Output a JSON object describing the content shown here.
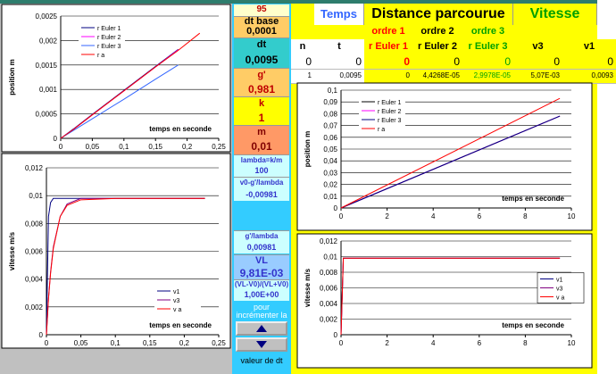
{
  "sidebar": {
    "count": "95",
    "params": [
      {
        "label": "dt base",
        "value": "0,0001"
      },
      {
        "label": "dt",
        "value": "0,0095"
      },
      {
        "label": "g'",
        "value": "0,981"
      },
      {
        "label": "k",
        "value": "1"
      },
      {
        "label": "m",
        "value": "0,01"
      },
      {
        "label": "lambda=k/m",
        "value": "100"
      },
      {
        "label": "v0-g'/lambda",
        "value": "-0,00981"
      },
      {
        "label": "g'/lambda",
        "value": "0,00981"
      },
      {
        "label": "VL",
        "value": "9,81E-03"
      },
      {
        "label": "(VL-V0)/(VL+V0)",
        "value": "1,00E+00"
      }
    ],
    "increment_note": "pour incrémenter la",
    "increment_target": "valeur de dt"
  },
  "table": {
    "group_headers": [
      "Temps",
      "Distance parcourue",
      "Vitesse"
    ],
    "sub_headers": [
      "ordre 1",
      "ordre 2",
      "ordre 3"
    ],
    "columns": [
      "n",
      "t",
      "r Euler 1",
      "r Euler 2",
      "r Euler 3",
      "v3",
      "v1"
    ],
    "rows": [
      [
        "0",
        "0",
        "0",
        "0",
        "0",
        "0",
        "0"
      ],
      [
        "1",
        "0,0095",
        "0",
        "4,4268E-05",
        "2,9978E-05",
        "5,07E-03",
        "0,0093"
      ]
    ]
  },
  "chart_data": [
    {
      "type": "line",
      "y_label": "position m",
      "x_label": "temps en seconde",
      "x": [
        0,
        0.02,
        0.05,
        0.1,
        0.15,
        0.186,
        0.22
      ],
      "series": [
        {
          "name": "r Euler 1",
          "color": "#000080",
          "values": [
            0,
            0.00019,
            0.00049,
            0.00098,
            0.00147,
            0.00182,
            null
          ]
        },
        {
          "name": "r Euler 2",
          "color": "#ff00ff",
          "values": [
            0,
            0.00018,
            0.00048,
            0.00097,
            0.00146,
            0.00181,
            null
          ]
        },
        {
          "name": "r Euler 3",
          "color": "#3366ff",
          "values": [
            0,
            0.00016,
            0.0004,
            0.0008,
            0.00121,
            0.0015,
            null
          ]
        },
        {
          "name": "r a",
          "color": "#ff0000",
          "values": [
            0,
            0.00018,
            0.00048,
            0.00097,
            0.00146,
            0.0018,
            0.00215
          ]
        }
      ],
      "xlim": [
        0,
        0.25
      ],
      "ylim": [
        0,
        0.0025
      ],
      "xticks": [
        0,
        {
          "value": 0.05,
          "label": "0,05"
        },
        {
          "value": 0.1,
          "label": "0,1"
        },
        {
          "value": 0.15,
          "label": "0,15"
        },
        {
          "value": 0.2,
          "label": "0,2"
        },
        {
          "value": 0.25,
          "label": "0,25"
        }
      ],
      "yticks": [
        0,
        {
          "value": 0.0005,
          "label": "0,0005"
        },
        {
          "value": 0.001,
          "label": "0,001"
        },
        {
          "value": 0.0015,
          "label": "0,0015"
        },
        {
          "value": 0.002,
          "label": "0,002"
        },
        {
          "value": 0.0025,
          "label": "0,0025"
        }
      ],
      "legend": "upper left",
      "grid": true
    },
    {
      "type": "line",
      "y_label": "vitesse m/s",
      "x_label": "temps en seconde",
      "x": [
        0,
        0.003,
        0.006,
        0.01,
        0.02,
        0.03,
        0.05,
        0.1,
        0.23
      ],
      "series": [
        {
          "name": "v1",
          "color": "#000080",
          "values": [
            0,
            0.0085,
            0.0095,
            0.0098,
            0.0098,
            0.0098,
            0.0098,
            0.0098,
            0.0098
          ]
        },
        {
          "name": "v3",
          "color": "#800080",
          "values": [
            0,
            0.0026,
            0.0045,
            0.0063,
            0.0085,
            0.0094,
            0.0098,
            0.0098,
            0.0098
          ]
        },
        {
          "name": "v a",
          "color": "#ff0000",
          "values": [
            0,
            0.0026,
            0.0044,
            0.0062,
            0.0085,
            0.0093,
            0.0097,
            0.0098,
            0.0098
          ]
        }
      ],
      "xlim": [
        0,
        0.25
      ],
      "ylim": [
        0,
        0.012
      ],
      "xticks": [
        0,
        {
          "value": 0.05,
          "label": "0,05"
        },
        {
          "value": 0.1,
          "label": "0,1"
        },
        {
          "value": 0.15,
          "label": "0,15"
        },
        {
          "value": 0.2,
          "label": "0,2"
        },
        {
          "value": 0.25,
          "label": "0,25"
        }
      ],
      "yticks": [
        0,
        {
          "value": 0.002,
          "label": "0,002"
        },
        {
          "value": 0.004,
          "label": "0,004"
        },
        {
          "value": 0.006,
          "label": "0,006"
        },
        {
          "value": 0.008,
          "label": "0,008"
        },
        {
          "value": 0.01,
          "label": "0,01"
        },
        {
          "value": 0.012,
          "label": "0,012"
        }
      ],
      "legend": "lower right",
      "grid": true
    },
    {
      "type": "line",
      "y_label": "position m",
      "x_label": "temps en seconde",
      "x": [
        0,
        9.5
      ],
      "series": [
        {
          "name": "r Euler 1",
          "color": "#000000",
          "values": [
            0,
            0.078
          ]
        },
        {
          "name": "r Euler 2",
          "color": "#ff00ff",
          "values": [
            0,
            0.078
          ]
        },
        {
          "name": "r Euler 3",
          "color": "#000080",
          "values": [
            0,
            0.078
          ]
        },
        {
          "name": "r a",
          "color": "#ff0000",
          "values": [
            0,
            0.093
          ]
        }
      ],
      "xlim": [
        0,
        10
      ],
      "ylim": [
        0,
        0.1
      ],
      "xticks": [
        0,
        2,
        4,
        6,
        8,
        10
      ],
      "yticks": [
        0,
        {
          "value": 0.01,
          "label": "0,01"
        },
        {
          "value": 0.02,
          "label": "0,02"
        },
        {
          "value": 0.03,
          "label": "0,03"
        },
        {
          "value": 0.04,
          "label": "0,04"
        },
        {
          "value": 0.05,
          "label": "0,05"
        },
        {
          "value": 0.06,
          "label": "0,06"
        },
        {
          "value": 0.07,
          "label": "0,07"
        },
        {
          "value": 0.08,
          "label": "0,08"
        },
        {
          "value": 0.09,
          "label": "0,09"
        },
        {
          "value": 0.1,
          "label": "0,1"
        }
      ],
      "legend": "upper left",
      "grid": true
    },
    {
      "type": "line",
      "y_label": "vitesse m/s",
      "x_label": "temps en seconde",
      "x": [
        0,
        0.1,
        9.5
      ],
      "series": [
        {
          "name": "v1",
          "color": "#000080",
          "values": [
            0,
            0.0098,
            0.0098
          ]
        },
        {
          "name": "v3",
          "color": "#800080",
          "values": [
            0,
            0.0098,
            0.0098
          ]
        },
        {
          "name": "v a",
          "color": "#ff0000",
          "values": [
            0,
            0.0098,
            0.0098
          ]
        }
      ],
      "xlim": [
        0,
        10
      ],
      "ylim": [
        0,
        0.012
      ],
      "xticks": [
        0,
        2,
        4,
        6,
        8,
        10
      ],
      "yticks": [
        0,
        {
          "value": 0.002,
          "label": "0,002"
        },
        {
          "value": 0.004,
          "label": "0,004"
        },
        {
          "value": 0.006,
          "label": "0,006"
        },
        {
          "value": 0.008,
          "label": "0,008"
        },
        {
          "value": 0.01,
          "label": "0,01"
        },
        {
          "value": 0.012,
          "label": "0,012"
        }
      ],
      "legend": "center right",
      "grid": true
    }
  ]
}
